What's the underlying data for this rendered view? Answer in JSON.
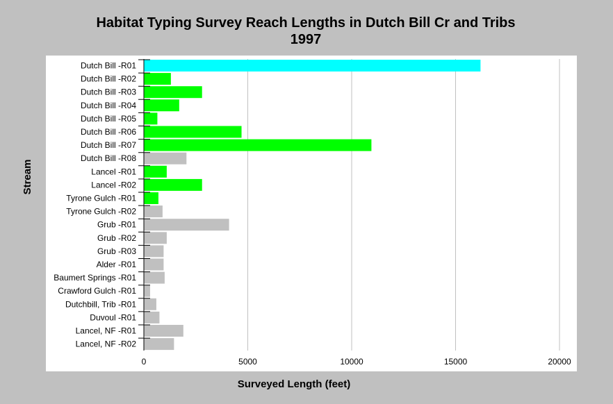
{
  "chart_data": {
    "type": "bar",
    "orientation": "horizontal",
    "title_line1": "Habitat Typing Survey Reach Lengths in Dutch Bill Cr and Tribs",
    "title_line2": "1997",
    "xlabel": "Surveyed Length (feet)",
    "ylabel": "Stream",
    "xlim": [
      0,
      20000
    ],
    "x_ticks": [
      "0",
      "5000",
      "10000",
      "15000",
      "20000"
    ],
    "grid": "vertical",
    "categories": [
      "Dutch Bill -R01",
      "Dutch Bill -R02",
      "Dutch Bill -R03",
      "Dutch Bill -R04",
      "Dutch Bill -R05",
      "Dutch Bill -R06",
      "Dutch Bill -R07",
      "Dutch Bill -R08",
      "Lancel -R01",
      "Lancel -R02",
      "Tyrone Gulch -R01",
      "Tyrone Gulch -R02",
      "Grub -R01",
      "Grub -R02",
      "Grub -R03",
      "Alder -R01",
      "Baumert Springs -R01",
      "Crawford Gulch -R01",
      "Dutchbill, Trib -R01",
      "Duvoul -R01",
      "Lancel, NF -R01",
      "Lancel, NF -R02"
    ],
    "values": [
      16200,
      1300,
      2800,
      1700,
      650,
      4700,
      10950,
      2050,
      1100,
      2800,
      700,
      900,
      4100,
      1100,
      950,
      950,
      1000,
      300,
      600,
      750,
      1900,
      1450
    ],
    "bar_colors": [
      "#00ffff",
      "#00ff00",
      "#00ff00",
      "#00ff00",
      "#00ff00",
      "#00ff00",
      "#00ff00",
      "#c0c0c0",
      "#00ff00",
      "#00ff00",
      "#00ff00",
      "#c0c0c0",
      "#c0c0c0",
      "#c0c0c0",
      "#c0c0c0",
      "#c0c0c0",
      "#c0c0c0",
      "#c0c0c0",
      "#c0c0c0",
      "#c0c0c0",
      "#c0c0c0",
      "#c0c0c0"
    ],
    "plot_background": "#ffffff",
    "page_background": "#c0c0c0",
    "gridline_color": "#c0c0c0"
  }
}
